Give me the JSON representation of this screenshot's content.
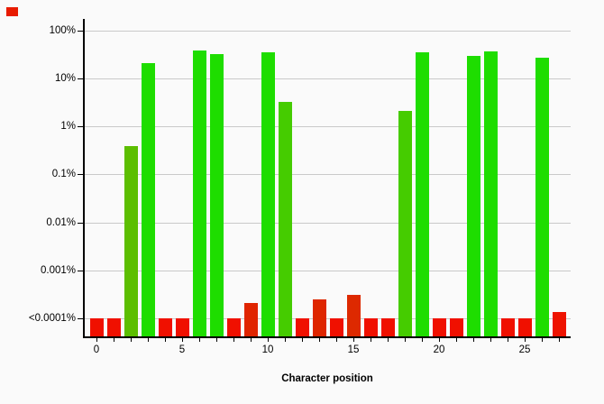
{
  "window": {
    "background": "#fafafa",
    "marker_color": "#e81b00"
  },
  "chart_data": {
    "type": "bar",
    "title": "",
    "xlabel": "Character position",
    "ylabel": "",
    "y_scale": "log",
    "grid": "horizontal",
    "floor_pct": 0.0001,
    "x_range": [
      0,
      27
    ],
    "x_tick_labels": [
      "0",
      "5",
      "10",
      "15",
      "20",
      "25"
    ],
    "x_tick_positions": [
      0,
      5,
      10,
      15,
      20,
      25
    ],
    "y_ticks": [
      {
        "label": "100%",
        "value": 100
      },
      {
        "label": "10%",
        "value": 10
      },
      {
        "label": "1%",
        "value": 1
      },
      {
        "label": "0.1%",
        "value": 0.1
      },
      {
        "label": "0.01%",
        "value": 0.01
      },
      {
        "label": "0.001%",
        "value": 0.001
      },
      {
        "label": "<0.0001%",
        "value": 0.0001
      }
    ],
    "colors": {
      "bright_green": "#1edd00",
      "medium_green": "#45cc00",
      "olive_green": "#5cbe00",
      "bright_red": "#f01000",
      "dark_red": "#dd2800",
      "grid": "#c9c9c9",
      "axis": "#000000"
    },
    "bars": [
      {
        "pos": 0,
        "pct": "<0.0001",
        "color": "#f01000"
      },
      {
        "pos": 1,
        "pct": "<0.0001",
        "color": "#f01000"
      },
      {
        "pos": 2,
        "pct": "0.39",
        "color": "#5cbe00"
      },
      {
        "pos": 3,
        "pct": "21",
        "color": "#1edd00"
      },
      {
        "pos": 4,
        "pct": "<0.0001",
        "color": "#f01000"
      },
      {
        "pos": 5,
        "pct": "<0.0001",
        "color": "#f01000"
      },
      {
        "pos": 6,
        "pct": "38",
        "color": "#1edd00"
      },
      {
        "pos": 7,
        "pct": "32",
        "color": "#1edd00"
      },
      {
        "pos": 8,
        "pct": "<0.0001",
        "color": "#f01000"
      },
      {
        "pos": 9,
        "pct": "0.00021",
        "color": "#e02400"
      },
      {
        "pos": 10,
        "pct": "35",
        "color": "#1edd00"
      },
      {
        "pos": 11,
        "pct": "3.2",
        "color": "#45cc00"
      },
      {
        "pos": 12,
        "pct": "<0.0001",
        "color": "#f01000"
      },
      {
        "pos": 13,
        "pct": "0.00025",
        "color": "#de2600"
      },
      {
        "pos": 14,
        "pct": "<0.0001",
        "color": "#f01000"
      },
      {
        "pos": 15,
        "pct": "0.00031",
        "color": "#dd2900"
      },
      {
        "pos": 16,
        "pct": "<0.0001",
        "color": "#f01000"
      },
      {
        "pos": 17,
        "pct": "<0.0001",
        "color": "#f01000"
      },
      {
        "pos": 18,
        "pct": "2.1",
        "color": "#45cc00"
      },
      {
        "pos": 19,
        "pct": "35",
        "color": "#1edd00"
      },
      {
        "pos": 20,
        "pct": "<0.0001",
        "color": "#f01000"
      },
      {
        "pos": 21,
        "pct": "<0.0001",
        "color": "#f01000"
      },
      {
        "pos": 22,
        "pct": "29",
        "color": "#1edd00"
      },
      {
        "pos": 23,
        "pct": "37",
        "color": "#1edd00"
      },
      {
        "pos": 24,
        "pct": "<0.0001",
        "color": "#f01000"
      },
      {
        "pos": 25,
        "pct": "<0.0001",
        "color": "#f01000"
      },
      {
        "pos": 26,
        "pct": "27",
        "color": "#1edd00"
      },
      {
        "pos": 27,
        "pct": "0.00014",
        "color": "#ee1300"
      }
    ]
  }
}
